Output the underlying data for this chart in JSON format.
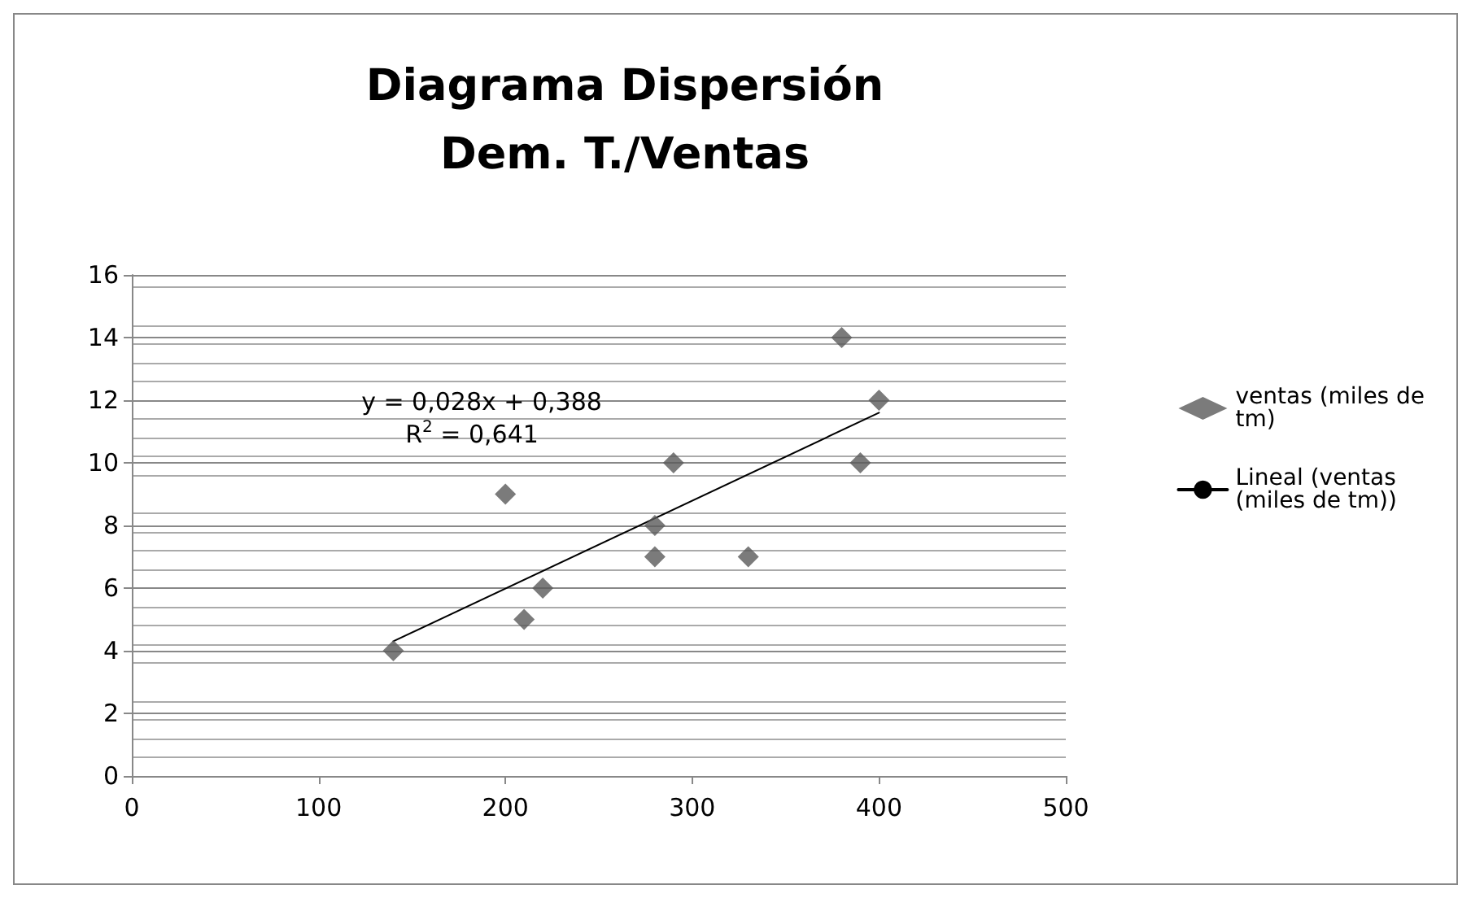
{
  "chart_data": {
    "type": "scatter",
    "title": "Diagrama Dispersión\nDem. T./Ventas",
    "series": [
      {
        "name": "ventas (miles de tm)",
        "color": "#5a5a5a",
        "x": [
          140,
          200,
          210,
          220,
          280,
          280,
          290,
          330,
          380,
          390,
          400
        ],
        "values": [
          4,
          9,
          5,
          6,
          8,
          7,
          10,
          7,
          14,
          10,
          12
        ],
        "marker": "diamond"
      },
      {
        "name": "Lineal (ventas (miles de tm))",
        "type": "line",
        "color": "#000000",
        "x": [
          140,
          400
        ],
        "values": [
          4.3,
          11.6
        ],
        "marker": "none"
      }
    ],
    "xlim": [
      0,
      500
    ],
    "xticks": [
      0,
      100,
      200,
      300,
      400,
      500
    ],
    "ylim": [
      0,
      16
    ],
    "yticks": [
      0,
      2,
      4,
      6,
      8,
      10,
      12,
      14,
      16
    ],
    "grid": "y",
    "legend": "right",
    "annotations": [
      "y = 0,028x + 0,388",
      "R$^{2}$ = 0,641"
    ]
  }
}
